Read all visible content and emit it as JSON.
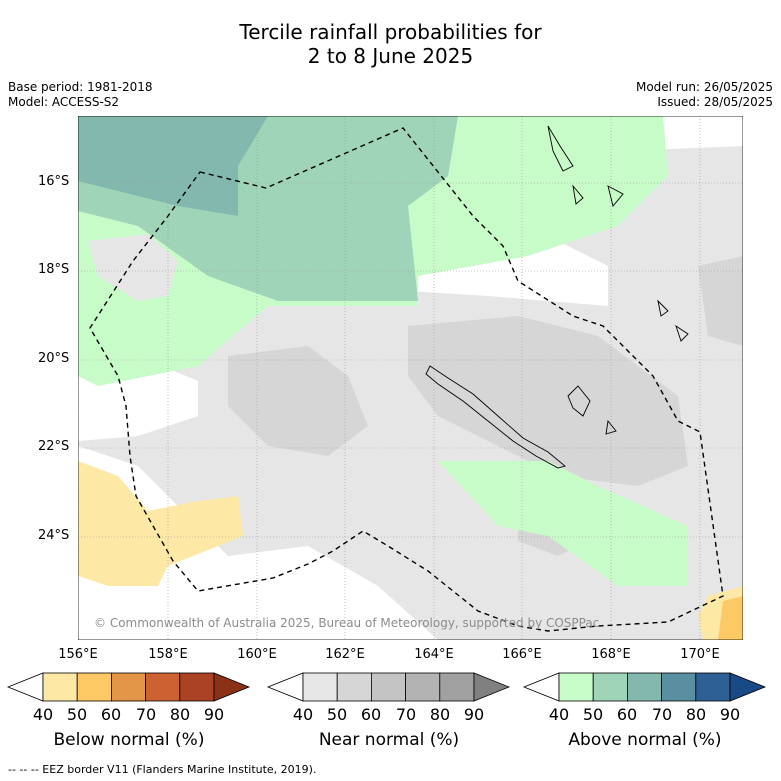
{
  "title": {
    "line1": "Tercile rainfall probabilities for",
    "line2": "2 to 8 June 2025"
  },
  "meta": {
    "base_period": "Base period: 1981-2018",
    "model": "Model: ACCESS-S2",
    "model_run": "Model run: 26/05/2025",
    "issued": "Issued: 28/05/2025"
  },
  "map": {
    "copyright": "© Commonwealth of Australia 2025, Bureau of Meteorology, supported by COSPPac",
    "x_ticks": [
      "156°E",
      "158°E",
      "160°E",
      "162°E",
      "164°E",
      "166°E",
      "168°E",
      "170°E"
    ],
    "y_ticks": [
      "16°S",
      "18°S",
      "20°S",
      "22°S",
      "24°S"
    ]
  },
  "colorbars": {
    "below": {
      "label": "Below normal (%)",
      "ticks": [
        "40",
        "50",
        "60",
        "70",
        "80",
        "90"
      ],
      "colors": [
        "#ffffff",
        "#fde9a5",
        "#fdc965",
        "#e39548",
        "#cc6232",
        "#ab4224",
        "#8b3117"
      ]
    },
    "near": {
      "label": "Near normal (%)",
      "ticks": [
        "40",
        "50",
        "60",
        "70",
        "80",
        "90"
      ],
      "colors": [
        "#ffffff",
        "#e6e6e6",
        "#d6d6d6",
        "#c4c4c4",
        "#b3b3b3",
        "#a0a0a0",
        "#808080"
      ]
    },
    "above": {
      "label": "Above normal (%)",
      "ticks": [
        "40",
        "50",
        "60",
        "70",
        "80",
        "90"
      ],
      "colors": [
        "#ffffff",
        "#c7fbc7",
        "#9fd4b8",
        "#82b8ae",
        "#5a8fa2",
        "#2e5f95",
        "#184a86"
      ]
    }
  },
  "footer": "--  --  -- EEZ border V11 (Flanders Marine Institute, 2019)."
}
